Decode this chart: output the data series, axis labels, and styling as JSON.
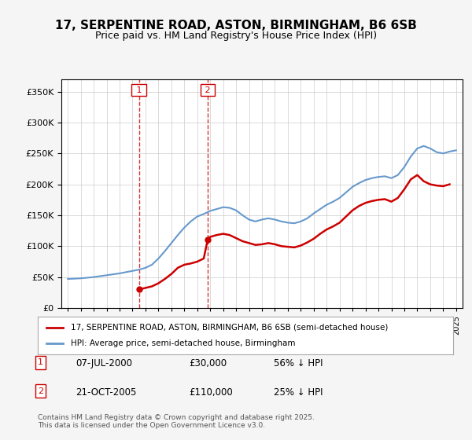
{
  "title": "17, SERPENTINE ROAD, ASTON, BIRMINGHAM, B6 6SB",
  "subtitle": "Price paid vs. HM Land Registry's House Price Index (HPI)",
  "legend_house": "17, SERPENTINE ROAD, ASTON, BIRMINGHAM, B6 6SB (semi-detached house)",
  "legend_hpi": "HPI: Average price, semi-detached house, Birmingham",
  "annotation1_label": "1",
  "annotation1_date": "07-JUL-2000",
  "annotation1_price": "£30,000",
  "annotation1_hpi": "56% ↓ HPI",
  "annotation2_label": "2",
  "annotation2_date": "21-OCT-2005",
  "annotation2_price": "£110,000",
  "annotation2_hpi": "25% ↓ HPI",
  "footer": "Contains HM Land Registry data © Crown copyright and database right 2025.\nThis data is licensed under the Open Government Licence v3.0.",
  "house_color": "#cc0000",
  "hpi_color": "#6699cc",
  "vline_color": "#cc0000",
  "background_color": "#f5f5f5",
  "plot_bg_color": "#ffffff",
  "ylim": [
    0,
    370000
  ],
  "yticks": [
    0,
    50000,
    100000,
    150000,
    200000,
    250000,
    300000,
    350000
  ],
  "hpi_years": [
    1995,
    1995.5,
    1996,
    1996.5,
    1997,
    1997.5,
    1998,
    1998.5,
    1999,
    1999.5,
    2000,
    2000.5,
    2001,
    2001.5,
    2002,
    2002.5,
    2003,
    2003.5,
    2004,
    2004.5,
    2005,
    2005.5,
    2006,
    2006.5,
    2007,
    2007.5,
    2008,
    2008.5,
    2009,
    2009.5,
    2010,
    2010.5,
    2011,
    2011.5,
    2012,
    2012.5,
    2013,
    2013.5,
    2014,
    2014.5,
    2015,
    2015.5,
    2016,
    2016.5,
    2017,
    2017.5,
    2018,
    2018.5,
    2019,
    2019.5,
    2020,
    2020.5,
    2021,
    2021.5,
    2022,
    2022.5,
    2023,
    2023.5,
    2024,
    2024.5,
    2025
  ],
  "hpi_values": [
    47000,
    47500,
    48000,
    49000,
    50000,
    51500,
    53000,
    54500,
    56000,
    58000,
    60000,
    62000,
    65000,
    70000,
    80000,
    92000,
    105000,
    118000,
    130000,
    140000,
    148000,
    152000,
    157000,
    160000,
    163000,
    162000,
    158000,
    150000,
    143000,
    140000,
    143000,
    145000,
    143000,
    140000,
    138000,
    137000,
    140000,
    145000,
    153000,
    160000,
    167000,
    172000,
    178000,
    187000,
    196000,
    202000,
    207000,
    210000,
    212000,
    213000,
    210000,
    215000,
    228000,
    245000,
    258000,
    262000,
    258000,
    252000,
    250000,
    253000,
    255000
  ],
  "house_years": [
    2000.5,
    2005.8
  ],
  "house_values": [
    30000,
    110000
  ],
  "house_line_years": [
    2000.5,
    2000.5,
    2001.5,
    2002,
    2002.5,
    2003,
    2003.5,
    2004,
    2004.5,
    2005,
    2005.5,
    2005.8,
    2005.8,
    2006,
    2006.5,
    2007,
    2007.5,
    2008,
    2008.5,
    2009,
    2009.5,
    2010,
    2010.5,
    2011,
    2011.5,
    2012,
    2012.5,
    2013,
    2013.5,
    2014,
    2014.5,
    2015,
    2015.5,
    2016,
    2016.5,
    2017,
    2017.5,
    2018,
    2018.5,
    2019,
    2019.5,
    2020,
    2020.5,
    2021,
    2021.5,
    2022,
    2022.5,
    2023,
    2023.5,
    2024,
    2024.5
  ],
  "house_line_values": [
    30000,
    30000,
    35000,
    40000,
    47000,
    55000,
    65000,
    70000,
    72000,
    75000,
    80000,
    110000,
    110000,
    115000,
    118000,
    120000,
    118000,
    113000,
    108000,
    105000,
    102000,
    103000,
    105000,
    103000,
    100000,
    99000,
    98000,
    101000,
    106000,
    112000,
    120000,
    127000,
    132000,
    138000,
    148000,
    158000,
    165000,
    170000,
    173000,
    175000,
    176000,
    172000,
    178000,
    192000,
    208000,
    215000,
    205000,
    200000,
    198000,
    197000,
    200000
  ],
  "vline1_x": 2000.5,
  "vline2_x": 2005.8,
  "xlim": [
    1994.5,
    2025.5
  ],
  "xticks": [
    1995,
    1996,
    1997,
    1998,
    1999,
    2000,
    2001,
    2002,
    2003,
    2004,
    2005,
    2006,
    2007,
    2008,
    2009,
    2010,
    2011,
    2012,
    2013,
    2014,
    2015,
    2016,
    2017,
    2018,
    2019,
    2020,
    2021,
    2022,
    2023,
    2024,
    2025
  ]
}
